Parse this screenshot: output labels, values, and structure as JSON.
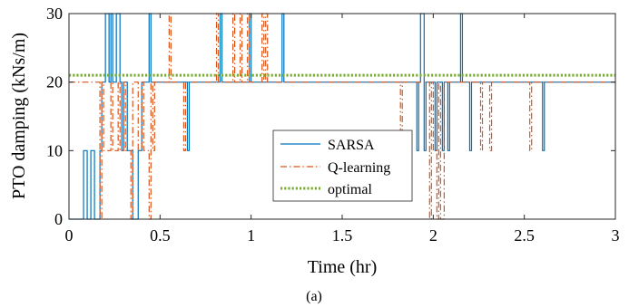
{
  "chart_data": {
    "type": "line",
    "xlabel": "Time (hr)",
    "ylabel": "PTO damping (kNs/m)",
    "caption": "(a)",
    "xlim": [
      0,
      3
    ],
    "ylim": [
      0,
      30
    ],
    "xticks": [
      0,
      0.5,
      1,
      1.5,
      2,
      2.5,
      3
    ],
    "xtick_labels": [
      "0",
      "0.5",
      "1",
      "1.5",
      "2",
      "2.5",
      "3"
    ],
    "yticks": [
      0,
      10,
      20,
      30
    ],
    "ytick_labels": [
      "0",
      "10",
      "20",
      "30"
    ],
    "grid": false,
    "legend_position": "center",
    "series": [
      {
        "name": "SARSA",
        "color": "#0072BD",
        "style": "solid",
        "step": true,
        "x": [
          0,
          0.08,
          0.1,
          0.12,
          0.14,
          0.17,
          0.18,
          0.2,
          0.22,
          0.23,
          0.24,
          0.26,
          0.28,
          0.29,
          0.3,
          0.32,
          0.35,
          0.38,
          0.4,
          0.44,
          0.45,
          0.46,
          0.48,
          0.65,
          0.66,
          0.67,
          0.83,
          0.84,
          0.99,
          1.0,
          1.17,
          1.18,
          1.91,
          1.92,
          1.93,
          1.95,
          1.96,
          2.01,
          2.02,
          2.03,
          2.05,
          2.06,
          2.08,
          2.09,
          2.15,
          2.16,
          2.17,
          2.2,
          2.21,
          2.6,
          2.61,
          2.62,
          3.0
        ],
        "y": [
          0,
          10,
          0,
          10,
          0,
          10,
          20,
          30,
          20,
          30,
          20,
          30,
          20,
          10,
          20,
          10,
          0,
          10,
          20,
          30,
          20,
          20,
          20,
          10,
          20,
          20,
          30,
          20,
          30,
          20,
          30,
          20,
          10,
          20,
          30,
          10,
          20,
          10,
          20,
          20,
          10,
          20,
          10,
          20,
          30,
          20,
          20,
          10,
          20,
          10,
          20,
          20,
          20
        ]
      },
      {
        "name": "Q-learning",
        "color": "#D95319",
        "style": "dashdot",
        "step": true,
        "x": [
          0,
          0.17,
          0.18,
          0.19,
          0.23,
          0.24,
          0.27,
          0.28,
          0.3,
          0.31,
          0.34,
          0.35,
          0.38,
          0.4,
          0.41,
          0.44,
          0.45,
          0.46,
          0.47,
          0.55,
          0.56,
          0.57,
          0.63,
          0.64,
          0.81,
          0.82,
          0.9,
          0.91,
          0.94,
          0.95,
          0.98,
          0.99,
          1.06,
          1.07,
          1.08,
          1.09,
          1.82,
          1.83,
          1.98,
          1.99,
          2.0,
          2.02,
          2.03,
          2.04,
          2.06,
          2.07,
          2.26,
          2.27,
          2.28,
          2.31,
          2.32,
          2.53,
          2.54,
          2.55,
          3.0
        ],
        "y": [
          20,
          0,
          20,
          10,
          20,
          10,
          20,
          10,
          20,
          10,
          0,
          20,
          10,
          20,
          10,
          0,
          20,
          10,
          20,
          30,
          20,
          20,
          10,
          20,
          30,
          20,
          30,
          20,
          30,
          20,
          30,
          20,
          30,
          20,
          30,
          20,
          10,
          20,
          0,
          20,
          10,
          0,
          20,
          0,
          20,
          20,
          10,
          20,
          20,
          10,
          20,
          10,
          20,
          20,
          20
        ]
      },
      {
        "name": "optimal",
        "color": "#77AC30",
        "style": "dotted",
        "step": false,
        "x": [
          0,
          3
        ],
        "y": [
          21,
          21
        ]
      }
    ]
  }
}
